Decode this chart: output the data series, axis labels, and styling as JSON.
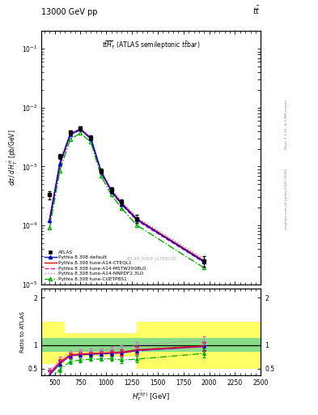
{
  "title_top": "13000 GeV pp",
  "title_right": "tt",
  "watermark": "ATLAS_2019_I1750330",
  "right_label_top": "Rivet 3.1.10, ≥ 2.8M events",
  "right_label_bot": "mcplots.cern.ch [arXiv:1306.3436]",
  "xlim": [
    370,
    2500
  ],
  "ylim_main": [
    1e-05,
    0.2
  ],
  "ylim_ratio": [
    0.35,
    2.2
  ],
  "atlas_x": [
    450,
    550,
    650,
    750,
    850,
    950,
    1050,
    1150,
    1300,
    1950
  ],
  "atlas_y": [
    0.00033,
    0.0015,
    0.0038,
    0.0045,
    0.0031,
    0.00085,
    0.0004,
    0.00025,
    0.00013,
    2.5e-05
  ],
  "atlas_yerr": [
    5e-05,
    0.00015,
    0.0003,
    0.00035,
    0.00025,
    8e-05,
    4e-05,
    3e-05,
    2e-05,
    5e-06
  ],
  "default_y": [
    0.00012,
    0.0011,
    0.0035,
    0.0043,
    0.003,
    0.00082,
    0.00038,
    0.00023,
    0.000125,
    2.4e-05
  ],
  "cteq_y": [
    0.00013,
    0.00115,
    0.00355,
    0.00435,
    0.00305,
    0.00083,
    0.00039,
    0.00024,
    0.000128,
    2.5e-05
  ],
  "mstw_y": [
    0.000115,
    0.00105,
    0.0034,
    0.0042,
    0.00295,
    0.0008,
    0.000375,
    0.000225,
    0.00012,
    2.35e-05
  ],
  "nnpdf_y": [
    0.00014,
    0.00125,
    0.00365,
    0.0045,
    0.00315,
    0.00086,
    0.00041,
    0.000255,
    0.000135,
    2.7e-05
  ],
  "cuetp_y": [
    9e-05,
    0.00085,
    0.0029,
    0.0037,
    0.0026,
    0.00069,
    0.00033,
    0.000195,
    0.0001,
    1.9e-05
  ],
  "ratio_default_y": [
    0.36,
    0.6,
    0.77,
    0.79,
    0.8,
    0.81,
    0.82,
    0.83,
    0.88,
    0.97
  ],
  "ratio_cteq_y": [
    0.4,
    0.64,
    0.79,
    0.81,
    0.82,
    0.83,
    0.84,
    0.85,
    0.9,
    0.98
  ],
  "ratio_mstw_y": [
    0.38,
    0.62,
    0.77,
    0.8,
    0.81,
    0.82,
    0.83,
    0.83,
    0.88,
    0.96
  ],
  "ratio_nnpdf_y": [
    0.43,
    0.7,
    0.83,
    0.87,
    0.88,
    0.89,
    0.91,
    0.93,
    1.0,
    1.1
  ],
  "ratio_cuetp_y": [
    0.27,
    0.48,
    0.65,
    0.68,
    0.7,
    0.7,
    0.71,
    0.68,
    0.7,
    0.82
  ],
  "ratio_err": [
    0.08,
    0.06,
    0.05,
    0.04,
    0.04,
    0.04,
    0.05,
    0.06,
    0.07,
    0.09
  ],
  "yellow_segments": [
    {
      "x": [
        370,
        600
      ],
      "y_lo": 0.6,
      "y_hi": 1.5
    },
    {
      "x": [
        600,
        1300
      ],
      "y_lo": 0.75,
      "y_hi": 1.25
    },
    {
      "x": [
        1300,
        2500
      ],
      "y_lo": 0.5,
      "y_hi": 1.5
    }
  ],
  "green_segments": [
    {
      "x": [
        370,
        2500
      ],
      "y_lo": 0.85,
      "y_hi": 1.15
    }
  ],
  "colors": {
    "atlas": "#000000",
    "default": "#0000cc",
    "cteq": "#dd0000",
    "mstw": "#ee0088",
    "nnpdf": "#cc66cc",
    "cuetp": "#00aa00"
  },
  "yellow_color": "#ffff66",
  "green_color": "#88dd88",
  "bg_color": "#ffffff"
}
